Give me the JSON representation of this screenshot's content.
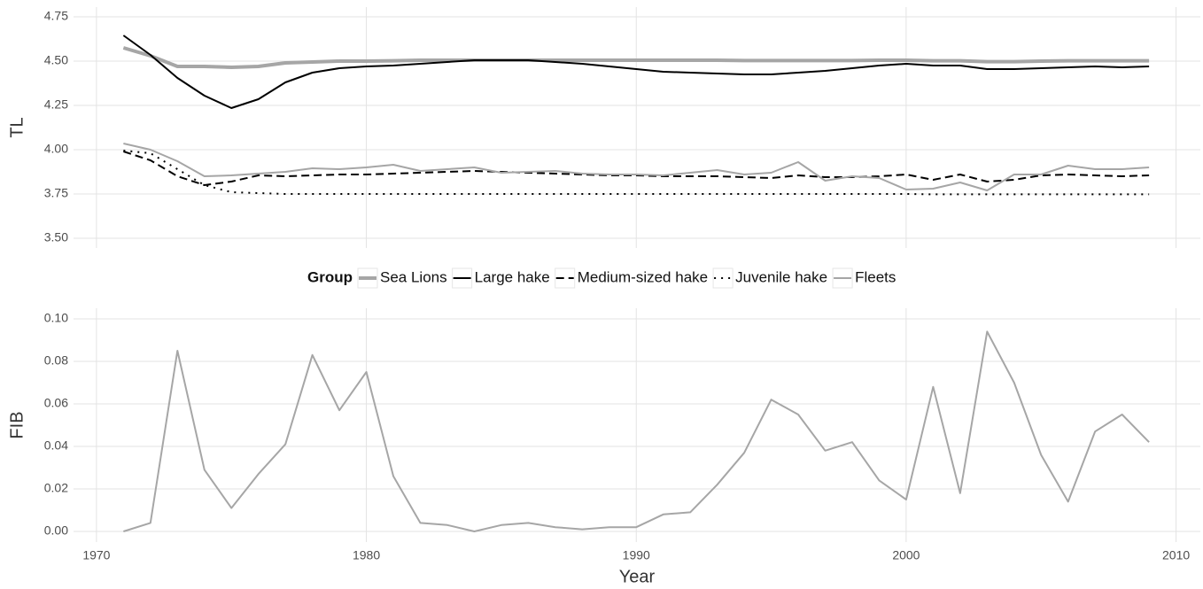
{
  "chart_data": [
    {
      "type": "line",
      "y_label": "TL",
      "legend_title": "Group",
      "x": [
        1971,
        1972,
        1973,
        1974,
        1975,
        1976,
        1977,
        1978,
        1979,
        1980,
        1981,
        1982,
        1983,
        1984,
        1985,
        1986,
        1987,
        1988,
        1989,
        1990,
        1991,
        1992,
        1993,
        1994,
        1995,
        1996,
        1997,
        1998,
        1999,
        2000,
        2001,
        2002,
        2003,
        2004,
        2005,
        2006,
        2007,
        2008,
        2009
      ],
      "xlim": [
        1969.15,
        2010.9
      ],
      "ylim": [
        3.445,
        4.805
      ],
      "yticks": [
        {
          "value": 3.5,
          "label": "3.50"
        },
        3.75,
        {
          "value": 4,
          "label": "4.00"
        },
        4.25,
        {
          "value": 4.5,
          "label": "4.50"
        },
        4.75
      ],
      "grid": true,
      "series": [
        {
          "name": "Sea Lions",
          "color": "#a6a6a6",
          "linestyle": "solid",
          "thick": true,
          "values": [
            4.575,
            4.53,
            4.47,
            4.47,
            4.465,
            4.47,
            4.49,
            4.495,
            4.5,
            4.5,
            4.502,
            4.505,
            4.505,
            4.505,
            4.505,
            4.505,
            4.505,
            4.505,
            4.505,
            4.505,
            4.505,
            4.505,
            4.505,
            4.503,
            4.503,
            4.503,
            4.503,
            4.503,
            4.505,
            4.505,
            4.502,
            4.502,
            4.497,
            4.497,
            4.5,
            4.502,
            4.502,
            4.502,
            4.502
          ]
        },
        {
          "name": "Large hake",
          "color": "#000000",
          "linestyle": "solid",
          "thick": false,
          "values": [
            4.645,
            4.535,
            4.405,
            4.305,
            4.235,
            4.285,
            4.38,
            4.435,
            4.46,
            4.47,
            4.475,
            4.485,
            4.495,
            4.505,
            4.505,
            4.505,
            4.495,
            4.485,
            4.47,
            4.455,
            4.44,
            4.435,
            4.43,
            4.425,
            4.425,
            4.435,
            4.445,
            4.46,
            4.475,
            4.485,
            4.475,
            4.475,
            4.455,
            4.455,
            4.46,
            4.465,
            4.47,
            4.465,
            4.47
          ]
        },
        {
          "name": "Medium-sized hake",
          "color": "#000000",
          "linestyle": "dashed",
          "thick": false,
          "values": [
            3.99,
            3.94,
            3.85,
            3.8,
            3.82,
            3.855,
            3.85,
            3.855,
            3.86,
            3.86,
            3.865,
            3.87,
            3.875,
            3.88,
            3.875,
            3.87,
            3.865,
            3.86,
            3.855,
            3.855,
            3.85,
            3.85,
            3.85,
            3.845,
            3.84,
            3.855,
            3.845,
            3.845,
            3.85,
            3.86,
            3.83,
            3.86,
            3.82,
            3.83,
            3.855,
            3.86,
            3.855,
            3.85,
            3.855
          ]
        },
        {
          "name": "Juvenile hake",
          "color": "#000000",
          "linestyle": "dotted",
          "thick": false,
          "values": [
            3.995,
            3.98,
            3.89,
            3.8,
            3.76,
            3.755,
            3.75,
            3.75,
            3.75,
            3.75,
            3.75,
            3.75,
            3.75,
            3.75,
            3.75,
            3.75,
            3.75,
            3.75,
            3.75,
            3.75,
            3.75,
            3.75,
            3.75,
            3.75,
            3.75,
            3.75,
            3.75,
            3.75,
            3.75,
            3.75,
            3.748,
            3.748,
            3.748,
            3.748,
            3.748,
            3.748,
            3.748,
            3.748,
            3.748
          ]
        },
        {
          "name": "Fleets",
          "color": "#a6a6a6",
          "linestyle": "solid",
          "thick": false,
          "values": [
            4.035,
            4.0,
            3.935,
            3.85,
            3.855,
            3.865,
            3.875,
            3.895,
            3.89,
            3.9,
            3.915,
            3.88,
            3.89,
            3.9,
            3.87,
            3.875,
            3.88,
            3.865,
            3.86,
            3.86,
            3.855,
            3.87,
            3.885,
            3.86,
            3.87,
            3.93,
            3.825,
            3.85,
            3.84,
            3.775,
            3.78,
            3.815,
            3.77,
            3.86,
            3.86,
            3.91,
            3.89,
            3.89,
            3.9
          ]
        }
      ]
    },
    {
      "type": "line",
      "y_label": "FIB",
      "x_label": "Year",
      "x": [
        1971,
        1972,
        1973,
        1974,
        1975,
        1976,
        1977,
        1978,
        1979,
        1980,
        1981,
        1982,
        1983,
        1984,
        1985,
        1986,
        1987,
        1988,
        1989,
        1990,
        1991,
        1992,
        1993,
        1994,
        1995,
        1996,
        1997,
        1998,
        1999,
        2000,
        2001,
        2002,
        2003,
        2004,
        2005,
        2006,
        2007,
        2008,
        2009
      ],
      "xlim": [
        1969.15,
        2010.9
      ],
      "xticks": [
        1970,
        1980,
        1990,
        2000,
        2010
      ],
      "ylim": [
        -0.005,
        0.105
      ],
      "yticks": [
        {
          "value": 0,
          "label": "0.00"
        },
        0.02,
        0.04,
        0.06,
        0.08,
        {
          "value": 0.1,
          "label": "0.10"
        }
      ],
      "grid": true,
      "series": [
        {
          "color": "#a6a6a6",
          "linestyle": "solid",
          "thick": false,
          "values": [
            0,
            0.004,
            0.085,
            0.029,
            0.011,
            0.027,
            0.041,
            0.083,
            0.057,
            0.075,
            0.026,
            0.004,
            0.003,
            0,
            0.003,
            0.004,
            0.002,
            0.001,
            0.002,
            0.002,
            0.008,
            0.009,
            0.022,
            0.037,
            0.062,
            0.055,
            0.038,
            0.042,
            0.024,
            0.015,
            0.068,
            0.018,
            0.094,
            0.07,
            0.036,
            0.014,
            0.047,
            0.055,
            0.042
          ]
        }
      ]
    }
  ]
}
